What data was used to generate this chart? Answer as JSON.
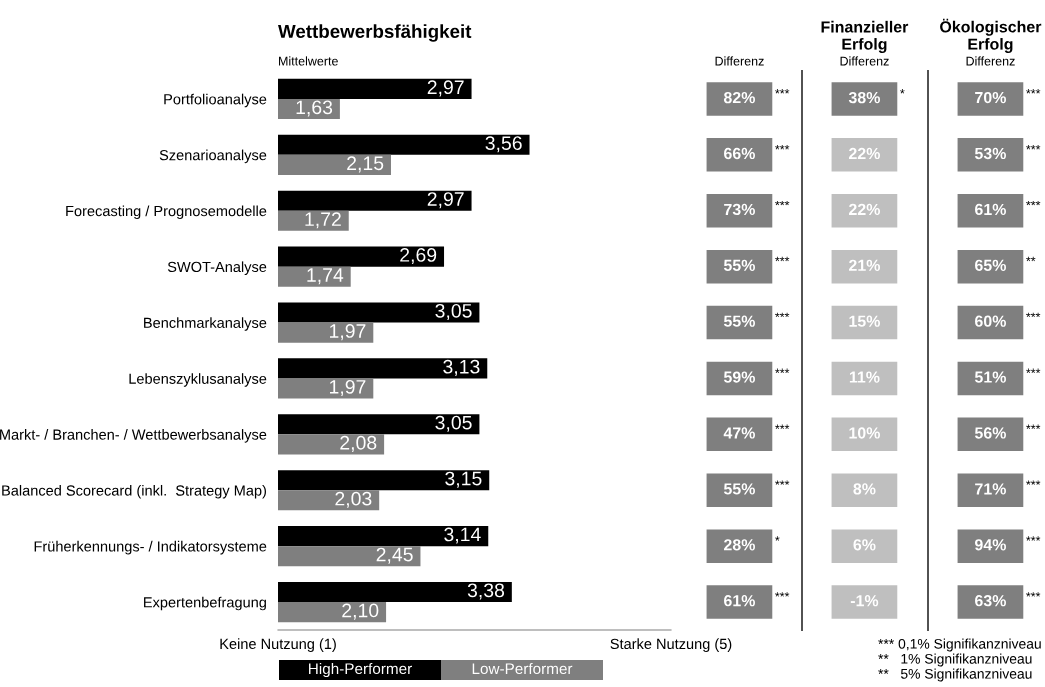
{
  "chart_data": [
    {
      "type": "bar",
      "orientation": "horizontal",
      "title": "Wettbewerbsfähigkeit",
      "subtitle": "Mittelwerte",
      "categories": [
        "Portfolioanalyse",
        "Szenarioanalyse",
        "Forecasting / Prognosemodelle",
        "SWOT-Analyse",
        "Benchmarkanalyse",
        "Lebenszyklusanalyse",
        "Markt- / Branchen- / Wettbewerbsanalyse",
        "Balanced Scorecard (inkl.  Strategy Map)",
        "Früherkennungs- / Indikatorsysteme",
        "Expertenbefragung"
      ],
      "series": [
        {
          "name": "High-Performer",
          "color": "#000000",
          "values": [
            2.97,
            3.56,
            2.97,
            2.69,
            3.05,
            3.13,
            3.05,
            3.15,
            3.14,
            3.38
          ],
          "value_labels": [
            "2,97",
            "3,56",
            "2,97",
            "2,69",
            "3,05",
            "3,13",
            "3,05",
            "3,15",
            "3,14",
            "3,38"
          ]
        },
        {
          "name": "Low-Performer",
          "color": "#7f7f7f",
          "values": [
            1.63,
            2.15,
            1.72,
            1.74,
            1.97,
            1.97,
            2.08,
            2.03,
            2.45,
            2.1
          ],
          "value_labels": [
            "1,63",
            "2,15",
            "1,72",
            "1,74",
            "1,97",
            "1,97",
            "2,08",
            "2,03",
            "2,45",
            "2,10"
          ]
        }
      ],
      "xlim": [
        1,
        5
      ],
      "xticks": [
        {
          "value": 1,
          "label": "Keine Nutzung (1)"
        },
        {
          "value": 5,
          "label": "Starke Nutzung (5)"
        }
      ],
      "grid": false,
      "legend": "bottom"
    },
    {
      "type": "other",
      "subtitle": "Differenz",
      "categories": [
        "82%",
        "66%",
        "73%",
        "55%",
        "55%",
        "59%",
        "47%",
        "55%",
        "28%",
        "61%"
      ],
      "colors": [
        "#7f7f7f",
        "#7f7f7f",
        "#7f7f7f",
        "#7f7f7f",
        "#7f7f7f",
        "#7f7f7f",
        "#7f7f7f",
        "#7f7f7f",
        "#7f7f7f",
        "#7f7f7f"
      ],
      "y2_categories": [
        "***",
        "***",
        "***",
        "***",
        "***",
        "***",
        "***",
        "***",
        "*",
        "***"
      ]
    },
    {
      "type": "other",
      "title": "Finanzieller\nErfolg",
      "subtitle": "Differenz",
      "categories": [
        "38%",
        "22%",
        "22%",
        "21%",
        "15%",
        "11%",
        "10%",
        "8%",
        "6%",
        "-1%"
      ],
      "colors": [
        "#7f7f7f",
        "#bfbfbf",
        "#bfbfbf",
        "#bfbfbf",
        "#bfbfbf",
        "#bfbfbf",
        "#bfbfbf",
        "#bfbfbf",
        "#bfbfbf",
        "#bfbfbf"
      ],
      "y2_categories": [
        "*",
        null,
        null,
        null,
        null,
        null,
        null,
        null,
        null,
        null
      ]
    },
    {
      "type": "other",
      "title": "Ökologischer\nErfolg",
      "subtitle": "Differenz",
      "categories": [
        "70%",
        "53%",
        "61%",
        "65%",
        "60%",
        "51%",
        "56%",
        "71%",
        "94%",
        "63%"
      ],
      "colors": [
        "#7f7f7f",
        "#7f7f7f",
        "#7f7f7f",
        "#7f7f7f",
        "#7f7f7f",
        "#7f7f7f",
        "#7f7f7f",
        "#7f7f7f",
        "#7f7f7f",
        "#7f7f7f"
      ],
      "y2_categories": [
        "***",
        "***",
        "***",
        "**",
        "***",
        "***",
        "***",
        "***",
        "***",
        "***"
      ],
      "annotations": [
        "*** 0,1% Signifikanzniveau",
        "**   1% Signifikanzniveau",
        "**   5% Signifikanzniveau"
      ]
    }
  ]
}
